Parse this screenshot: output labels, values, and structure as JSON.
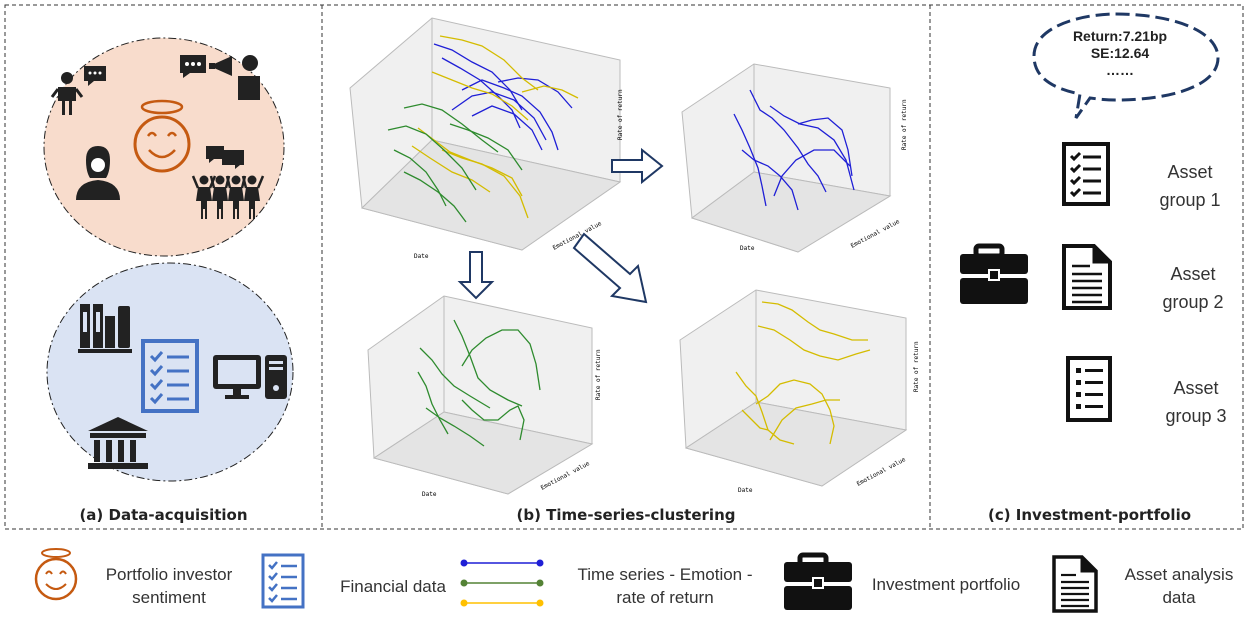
{
  "panels": {
    "a_title": "(a) Data-acquisition",
    "b_title": "(b) Time-series-clustering",
    "c_title": "(c) Investment-portfolio"
  },
  "plot_axes": {
    "x": "Date",
    "y": "Rate of return",
    "z": "Emotional value"
  },
  "speech_bubble": {
    "line1": "Return:7.21bp",
    "line2": "SE:12.64",
    "line3": "……"
  },
  "asset_groups": [
    {
      "line1": "Asset",
      "line2": "group 1"
    },
    {
      "line1": "Asset",
      "line2": "group 2"
    },
    {
      "line1": "Asset",
      "line2": "group 3"
    }
  ],
  "legend": {
    "sentiment": [
      "Portfolio investor",
      "sentiment"
    ],
    "financial": "Financial data",
    "timeseries": [
      "Time series - Emotion -",
      "rate of return"
    ],
    "portfolio": "Investment portfolio",
    "asset_data": [
      "Asset analysis",
      "data"
    ]
  },
  "colors": {
    "sentiment_circle": "#f8dccc",
    "financial_circle": "#dae3f3",
    "smiley": "#c55a11",
    "checklist": "#4472c4",
    "series_blue": "#1f1fd6",
    "series_green": "#2e8b2e",
    "series_yellow": "#e6c800"
  },
  "icons": [
    "user-icon",
    "chat-icon",
    "megaphone-icon",
    "woman-icon",
    "crowd-icon",
    "books-icon",
    "checklist-icon",
    "computer-icon",
    "bank-icon",
    "briefcase-icon",
    "document-icon",
    "arrow-icon"
  ]
}
